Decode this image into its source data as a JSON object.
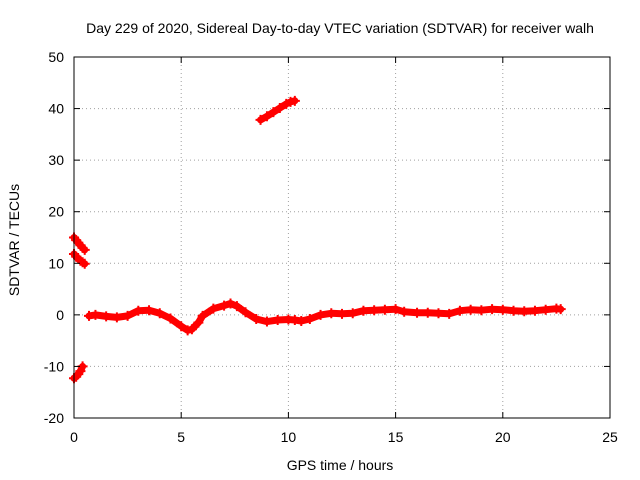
{
  "chart_data": {
    "type": "scatter",
    "title": "Day 229 of 2020, Sidereal Day-to-day VTEC variation (SDTVAR) for receiver walh",
    "xlabel": "GPS time / hours",
    "ylabel": "SDTVAR / TECUs",
    "xlim": [
      0,
      25
    ],
    "ylim": [
      -20,
      50
    ],
    "xticks": [
      0,
      5,
      10,
      15,
      20,
      25
    ],
    "yticks": [
      -20,
      -10,
      0,
      10,
      20,
      30,
      40,
      50
    ],
    "xtick_labels": [
      "0",
      "5",
      "10",
      "15",
      "20",
      "25"
    ],
    "ytick_labels": [
      "-20",
      "-10",
      "0",
      "10",
      "20",
      "30",
      "40",
      "50"
    ],
    "grid": true,
    "marker": "+",
    "color": "#ff0000",
    "series": [
      {
        "name": "satellite-arc-a",
        "x": [
          0.0,
          0.1,
          0.2,
          0.3,
          0.4,
          0.5
        ],
        "y": [
          15.0,
          14.5,
          14.0,
          13.5,
          13.0,
          12.6
        ]
      },
      {
        "name": "satellite-arc-b",
        "x": [
          0.0,
          0.1,
          0.2,
          0.3,
          0.4,
          0.5
        ],
        "y": [
          11.8,
          11.3,
          10.9,
          10.5,
          10.2,
          9.9
        ]
      },
      {
        "name": "satellite-arc-c",
        "x": [
          0.0,
          0.1,
          0.2,
          0.3,
          0.4
        ],
        "y": [
          -12.3,
          -12.0,
          -11.5,
          -10.9,
          -10.0
        ]
      },
      {
        "name": "satellite-arc-d",
        "x": [
          8.7,
          9.0,
          9.3,
          9.6,
          9.9,
          10.1,
          10.3
        ],
        "y": [
          37.8,
          38.5,
          39.3,
          40.1,
          40.9,
          41.3,
          41.5
        ]
      },
      {
        "name": "satellite-arc-main",
        "x": [
          0.7,
          1.0,
          1.5,
          2.0,
          2.5,
          3.0,
          3.5,
          4.0,
          4.5,
          5.0,
          5.3,
          5.5,
          5.8,
          6.0,
          6.5,
          7.0,
          7.3,
          7.6,
          8.0,
          8.5,
          9.0,
          9.5,
          10.0,
          10.3,
          10.6,
          11.0,
          11.5,
          12.0,
          12.5,
          13.0,
          13.5,
          14.0,
          14.5,
          15.0,
          15.4,
          16.0,
          16.5,
          17.0,
          17.5,
          18.0,
          18.5,
          19.0,
          19.5,
          20.0,
          20.5,
          21.0,
          21.5,
          22.0,
          22.5,
          22.7
        ],
        "y": [
          -0.2,
          0.0,
          -0.3,
          -0.5,
          -0.2,
          0.8,
          0.9,
          0.3,
          -0.7,
          -2.2,
          -3.0,
          -2.8,
          -1.5,
          -0.2,
          1.2,
          1.8,
          2.2,
          1.7,
          0.5,
          -0.8,
          -1.3,
          -1.0,
          -0.9,
          -1.0,
          -1.2,
          -0.8,
          0.0,
          0.3,
          0.2,
          0.3,
          0.8,
          0.9,
          1.0,
          1.1,
          0.6,
          0.4,
          0.4,
          0.3,
          0.2,
          0.8,
          1.0,
          0.9,
          1.1,
          1.0,
          0.8,
          0.7,
          0.8,
          1.0,
          1.2,
          1.1
        ]
      }
    ]
  }
}
